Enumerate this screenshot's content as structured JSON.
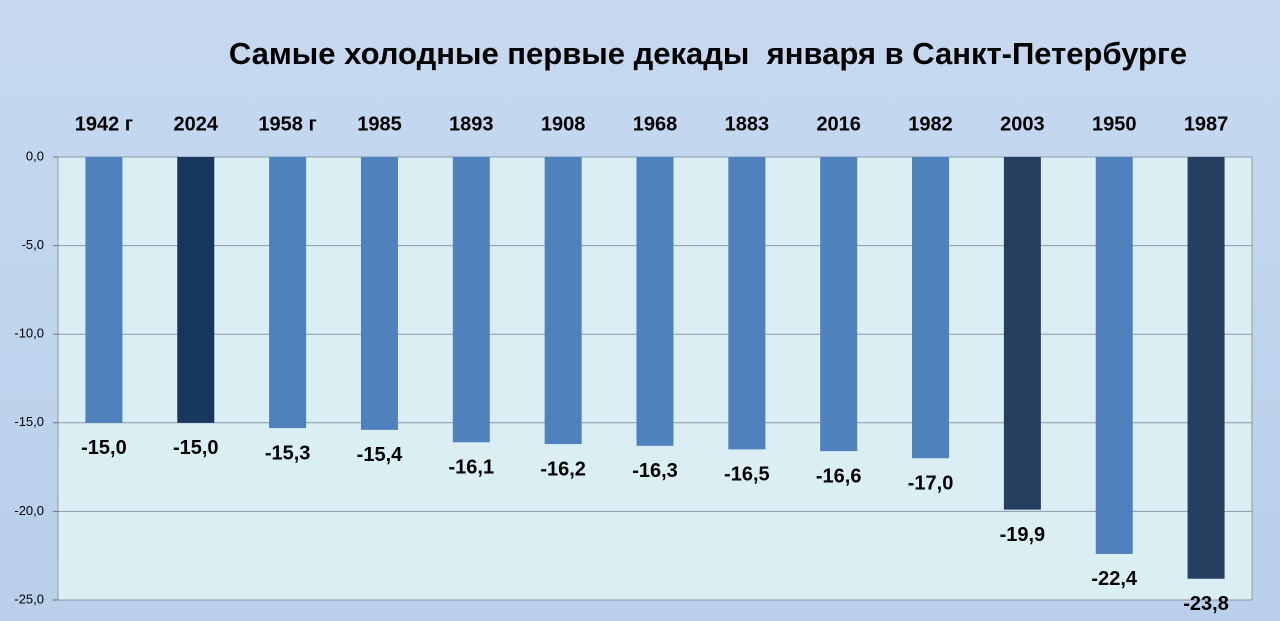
{
  "chart_data": {
    "type": "bar",
    "title": "Самые холодные первые декады  января в Санкт-Петербурге",
    "categories": [
      "1942 г",
      "2024",
      "1958 г",
      "1985",
      "1893",
      "1908",
      "1968",
      "1883",
      "2016",
      "1982",
      "2003",
      "1950",
      "1987"
    ],
    "values": [
      -15.0,
      -15.0,
      -15.3,
      -15.4,
      -16.1,
      -16.2,
      -16.3,
      -16.5,
      -16.6,
      -17.0,
      -19.9,
      -22.4,
      -23.8
    ],
    "value_labels": [
      "-15,0",
      "-15,0",
      "-15,3",
      "-15,4",
      "-16,1",
      "-16,2",
      "-16,3",
      "-16,5",
      "-16,6",
      "-17,0",
      "-19,9",
      "-22,4",
      "-23,8"
    ],
    "colors": [
      "#4f81bd",
      "#17375e",
      "#4f81bd",
      "#4f81bd",
      "#4f81bd",
      "#4f81bd",
      "#4f81bd",
      "#4f81bd",
      "#4f81bd",
      "#4f81bd",
      "#243f60",
      "#4f81bd",
      "#243f60"
    ],
    "ylim": [
      -25,
      0
    ],
    "yticks": [
      {
        "value": 0,
        "label": "0,0"
      },
      {
        "value": -5,
        "label": "-5,0"
      },
      {
        "value": -10,
        "label": "-10,0"
      },
      {
        "value": -15,
        "label": "-15,0"
      },
      {
        "value": -20,
        "label": "-20,0"
      },
      {
        "value": -25,
        "label": "-25,0"
      }
    ],
    "grid": true
  }
}
